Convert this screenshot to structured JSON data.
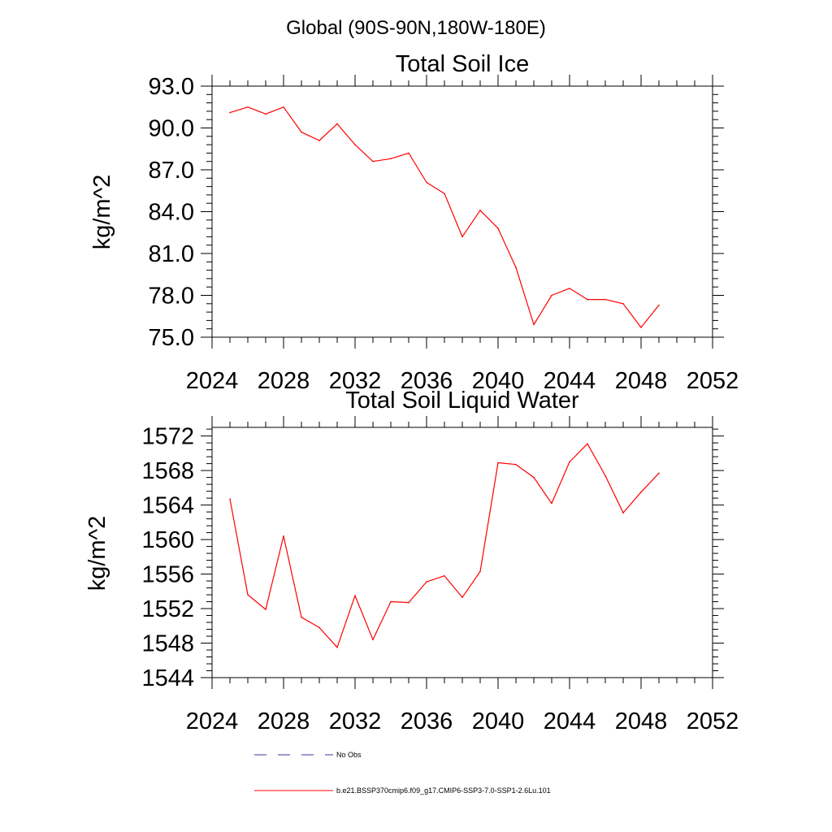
{
  "figure_title": "Global (90S-90N,180W-180E)",
  "legend": {
    "entries": [
      {
        "label": "No Obs",
        "color": "#3a3aa8",
        "style": "dashed"
      },
      {
        "label": "b.e21.BSSP370cmip6.f09_g17.CMIP6-SSP3-7.0-SSP1-2.6Lu.101",
        "color": "#ff0000",
        "style": "solid"
      }
    ]
  },
  "chart_data": [
    {
      "type": "line",
      "title": "Total Soil Ice",
      "xlabel": "",
      "ylabel": "kg/m^2",
      "xlim": [
        2024,
        2052
      ],
      "ylim": [
        75,
        93
      ],
      "xticks": [
        "2024",
        "2028",
        "2032",
        "2036",
        "2040",
        "2044",
        "2048",
        "2052"
      ],
      "yticks": [
        "75.0",
        "78.0",
        "81.0",
        "84.0",
        "87.0",
        "90.0",
        "93.0"
      ],
      "grid": false,
      "series": [
        {
          "color": "#ff0000",
          "x": [
            2025,
            2026,
            2027,
            2028,
            2029,
            2030,
            2031,
            2032,
            2033,
            2034,
            2035,
            2036,
            2037,
            2038,
            2039,
            2040,
            2041,
            2042,
            2043,
            2044,
            2045,
            2046,
            2047,
            2048,
            2049
          ],
          "y": [
            91.1,
            91.5,
            91.0,
            91.5,
            89.7,
            89.1,
            90.3,
            88.8,
            87.6,
            87.8,
            88.2,
            86.1,
            85.3,
            82.2,
            84.1,
            82.8,
            80.0,
            75.9,
            78.0,
            78.5,
            77.7,
            77.7,
            77.4,
            75.7,
            77.3
          ]
        }
      ]
    },
    {
      "type": "line",
      "title": "Total Soil Liquid Water",
      "xlabel": "",
      "ylabel": "kg/m^2",
      "xlim": [
        2024,
        2052
      ],
      "ylim": [
        1544,
        1573
      ],
      "xticks": [
        "2024",
        "2028",
        "2032",
        "2036",
        "2040",
        "2044",
        "2048",
        "2052"
      ],
      "yticks": [
        "1544",
        "1548",
        "1552",
        "1556",
        "1560",
        "1564",
        "1568",
        "1572"
      ],
      "grid": false,
      "series": [
        {
          "color": "#ff0000",
          "x": [
            2025,
            2026,
            2027,
            2028,
            2029,
            2030,
            2031,
            2032,
            2033,
            2034,
            2035,
            2036,
            2037,
            2038,
            2039,
            2040,
            2041,
            2042,
            2043,
            2044,
            2045,
            2046,
            2047,
            2048,
            2049
          ],
          "y": [
            1564.7,
            1553.6,
            1551.9,
            1560.4,
            1551.0,
            1549.8,
            1547.5,
            1553.5,
            1548.4,
            1552.8,
            1552.7,
            1555.1,
            1555.8,
            1553.3,
            1556.3,
            1568.9,
            1568.7,
            1567.2,
            1564.2,
            1569.0,
            1571.1,
            1567.4,
            1563.1,
            1565.5,
            1567.7
          ]
        }
      ]
    }
  ]
}
